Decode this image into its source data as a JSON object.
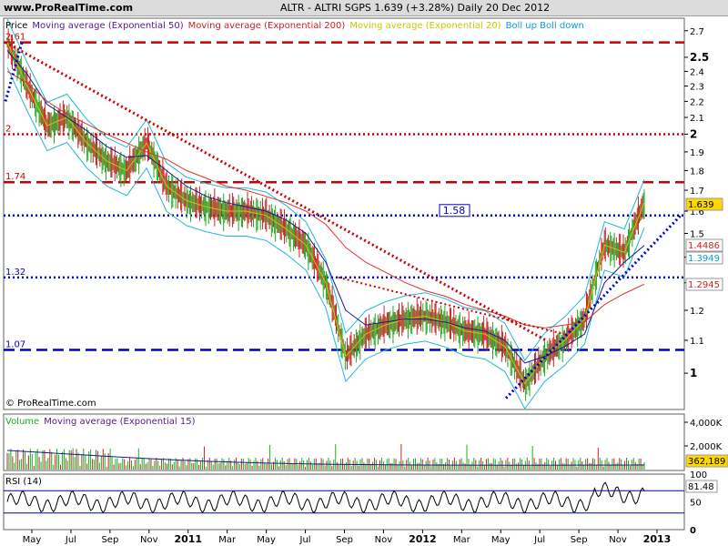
{
  "header": {
    "site": "www.ProRealTime.com",
    "title": "ALTR - ALTRI SGPS    1.639 (+3.28%)    Daily  20 Dec 2012"
  },
  "price_legend": [
    {
      "text": "Price",
      "color": "#000000"
    },
    {
      "text": "Moving average (Exponential 50)",
      "color": "#551a8b"
    },
    {
      "text": "Moving average (Exponential 200)",
      "color": "#cc2222"
    },
    {
      "text": "Moving average (Exponential 20)",
      "color": "#c8c800"
    },
    {
      "text": "Boll up Boll down",
      "color": "#0aa0c8"
    }
  ],
  "volume_legend": [
    {
      "text": "Volume",
      "color": "#22aa22"
    },
    {
      "text": "Moving average (Exponential 15)",
      "color": "#551a8b"
    }
  ],
  "rsi_legend": "RSI (14)",
  "copyright": "© ProRealTime.com",
  "colors": {
    "up": "#22aa22",
    "down": "#cc2222",
    "ema50": "#1a1a8b",
    "ema200": "#dd3333",
    "ema20": "#c8c800",
    "boll": "#20b8d8",
    "blue_line": "#0000cc",
    "red_line": "#cc0000"
  },
  "chart_data": {
    "type": "candlestick",
    "price_axis": {
      "ticks": [
        "2.7",
        "2.5",
        "2.4",
        "2.3",
        "2.2",
        "2.1",
        "2",
        "1.9",
        "1.8",
        "1.7",
        "1.6",
        "1.5",
        "1.4",
        "1.3",
        "1.2",
        "1.1",
        "1"
      ],
      "ylim": [
        0.9,
        2.8
      ],
      "scale": "log"
    },
    "x_ticks": [
      "May",
      "Jul",
      "Sep",
      "Nov",
      "2011",
      "Mar",
      "May",
      "Jul",
      "Sep",
      "Nov",
      "2012",
      "Mar",
      "May",
      "Jul",
      "Sep",
      "Nov",
      "2013"
    ],
    "horizontal_levels": [
      {
        "value": 2.61,
        "label": "2.61",
        "style": "red-dashed"
      },
      {
        "value": 2.0,
        "label": "2",
        "style": "red-dotted"
      },
      {
        "value": 1.74,
        "label": "1.74",
        "style": "red-dashed"
      },
      {
        "value": 1.58,
        "label": "1.58",
        "style": "blue-dotted"
      },
      {
        "value": 1.32,
        "label": "1.32",
        "style": "blue-dotted"
      },
      {
        "value": 1.07,
        "label": "1.07",
        "style": "blue-dashed"
      }
    ],
    "right_labels": [
      {
        "value": "1.639",
        "bg": "#ffd700",
        "color": "#000000"
      },
      {
        "value": "1.4486",
        "bg": "#ffffff",
        "color": "#cc2222"
      },
      {
        "value": "1.3949",
        "bg": "#ffffff",
        "color": "#0aa0c8"
      },
      {
        "value": "1.2945",
        "bg": "#ffffff",
        "color": "#cc2222"
      }
    ],
    "price_series": {
      "dates": [
        "2010-04",
        "2010-05",
        "2010-06",
        "2010-07",
        "2010-08",
        "2010-09",
        "2010-10",
        "2010-11",
        "2010-12",
        "2011-01",
        "2011-02",
        "2011-03",
        "2011-04",
        "2011-05",
        "2011-06",
        "2011-07",
        "2011-08",
        "2011-09",
        "2011-10",
        "2011-11",
        "2011-12",
        "2012-01",
        "2012-02",
        "2012-03",
        "2012-04",
        "2012-05",
        "2012-06",
        "2012-07",
        "2012-08",
        "2012-09",
        "2012-10",
        "2012-11",
        "2012-12"
      ],
      "close": [
        2.61,
        2.3,
        2.05,
        2.1,
        1.95,
        1.85,
        1.8,
        1.95,
        1.72,
        1.65,
        1.62,
        1.6,
        1.6,
        1.58,
        1.52,
        1.45,
        1.3,
        1.05,
        1.12,
        1.15,
        1.17,
        1.18,
        1.16,
        1.13,
        1.12,
        1.08,
        0.97,
        1.05,
        1.1,
        1.17,
        1.45,
        1.42,
        1.639
      ],
      "ema50": [
        2.55,
        2.38,
        2.18,
        2.1,
        2.02,
        1.93,
        1.87,
        1.88,
        1.8,
        1.72,
        1.67,
        1.64,
        1.62,
        1.6,
        1.56,
        1.5,
        1.38,
        1.2,
        1.15,
        1.16,
        1.17,
        1.17,
        1.16,
        1.14,
        1.13,
        1.1,
        1.03,
        1.05,
        1.08,
        1.12,
        1.3,
        1.38,
        1.4486
      ],
      "ema200": [
        2.4,
        2.32,
        2.2,
        2.12,
        2.06,
        2.0,
        1.95,
        1.9,
        1.86,
        1.8,
        1.76,
        1.72,
        1.7,
        1.67,
        1.64,
        1.6,
        1.54,
        1.44,
        1.38,
        1.34,
        1.3,
        1.27,
        1.25,
        1.22,
        1.2,
        1.18,
        1.15,
        1.14,
        1.15,
        1.16,
        1.22,
        1.26,
        1.2945
      ]
    },
    "volume_axis": {
      "ticks": [
        "4,000K",
        "2,000K"
      ],
      "last": "362,189"
    },
    "rsi_axis": {
      "ticks": [
        "100",
        "50",
        "0"
      ],
      "last": "81.48",
      "levels": [
        70,
        30
      ]
    }
  }
}
